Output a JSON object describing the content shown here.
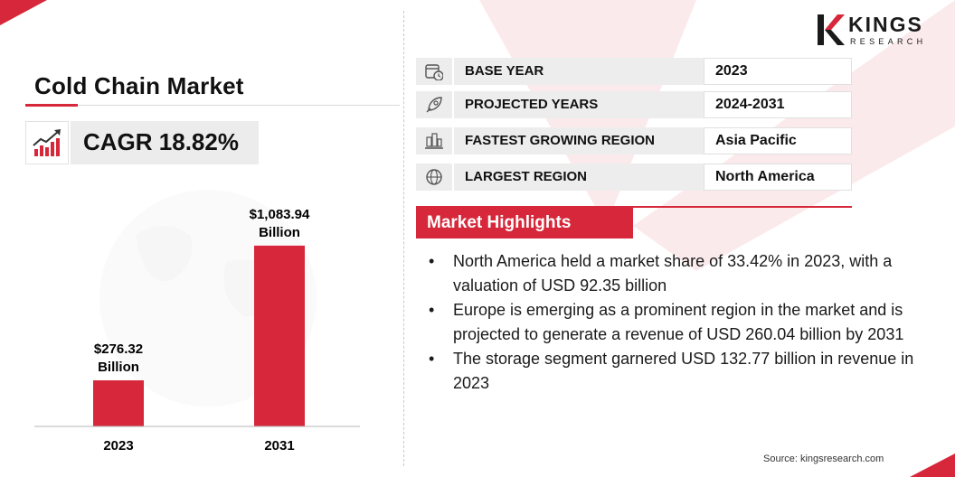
{
  "brand": {
    "name": "KINGS",
    "sub": "RESEARCH",
    "accent": "#d6283a"
  },
  "title": "Cold Chain Market",
  "cagr": {
    "text": "CAGR 18.82%",
    "icon": "growth-chart-icon"
  },
  "chart_data": {
    "type": "bar",
    "categories": [
      "2023",
      "2031"
    ],
    "values": [
      276.32,
      1083.94
    ],
    "value_labels": [
      "$276.32",
      "$1,083.94"
    ],
    "value_unit": "Billion",
    "color": "#d6283a",
    "ylim": [
      0,
      1300
    ],
    "grid": false,
    "title": "",
    "xlabel": "",
    "ylabel": ""
  },
  "info_rows": [
    {
      "label": "BASE YEAR",
      "value": "2023",
      "icon": "calendar-clock-icon"
    },
    {
      "label": "PROJECTED YEARS",
      "value": "2024-2031",
      "icon": "rocket-icon"
    },
    {
      "label": "FASTEST GROWING REGION",
      "value": "Asia Pacific",
      "icon": "city-map-icon"
    },
    {
      "label": "LARGEST REGION",
      "value": "North America",
      "icon": "globe-icon"
    }
  ],
  "highlights": {
    "heading": "Market Highlights",
    "items": [
      "North America held a market share of 33.42% in 2023, with a valuation of USD 92.35 billion",
      "Europe is emerging as a prominent region in the market and is projected to generate a revenue of USD 260.04 billion by 2031",
      "The storage segment garnered USD 132.77 billion in revenue in 2023"
    ]
  },
  "bullet": "•",
  "source": "Source: kingsresearch.com"
}
